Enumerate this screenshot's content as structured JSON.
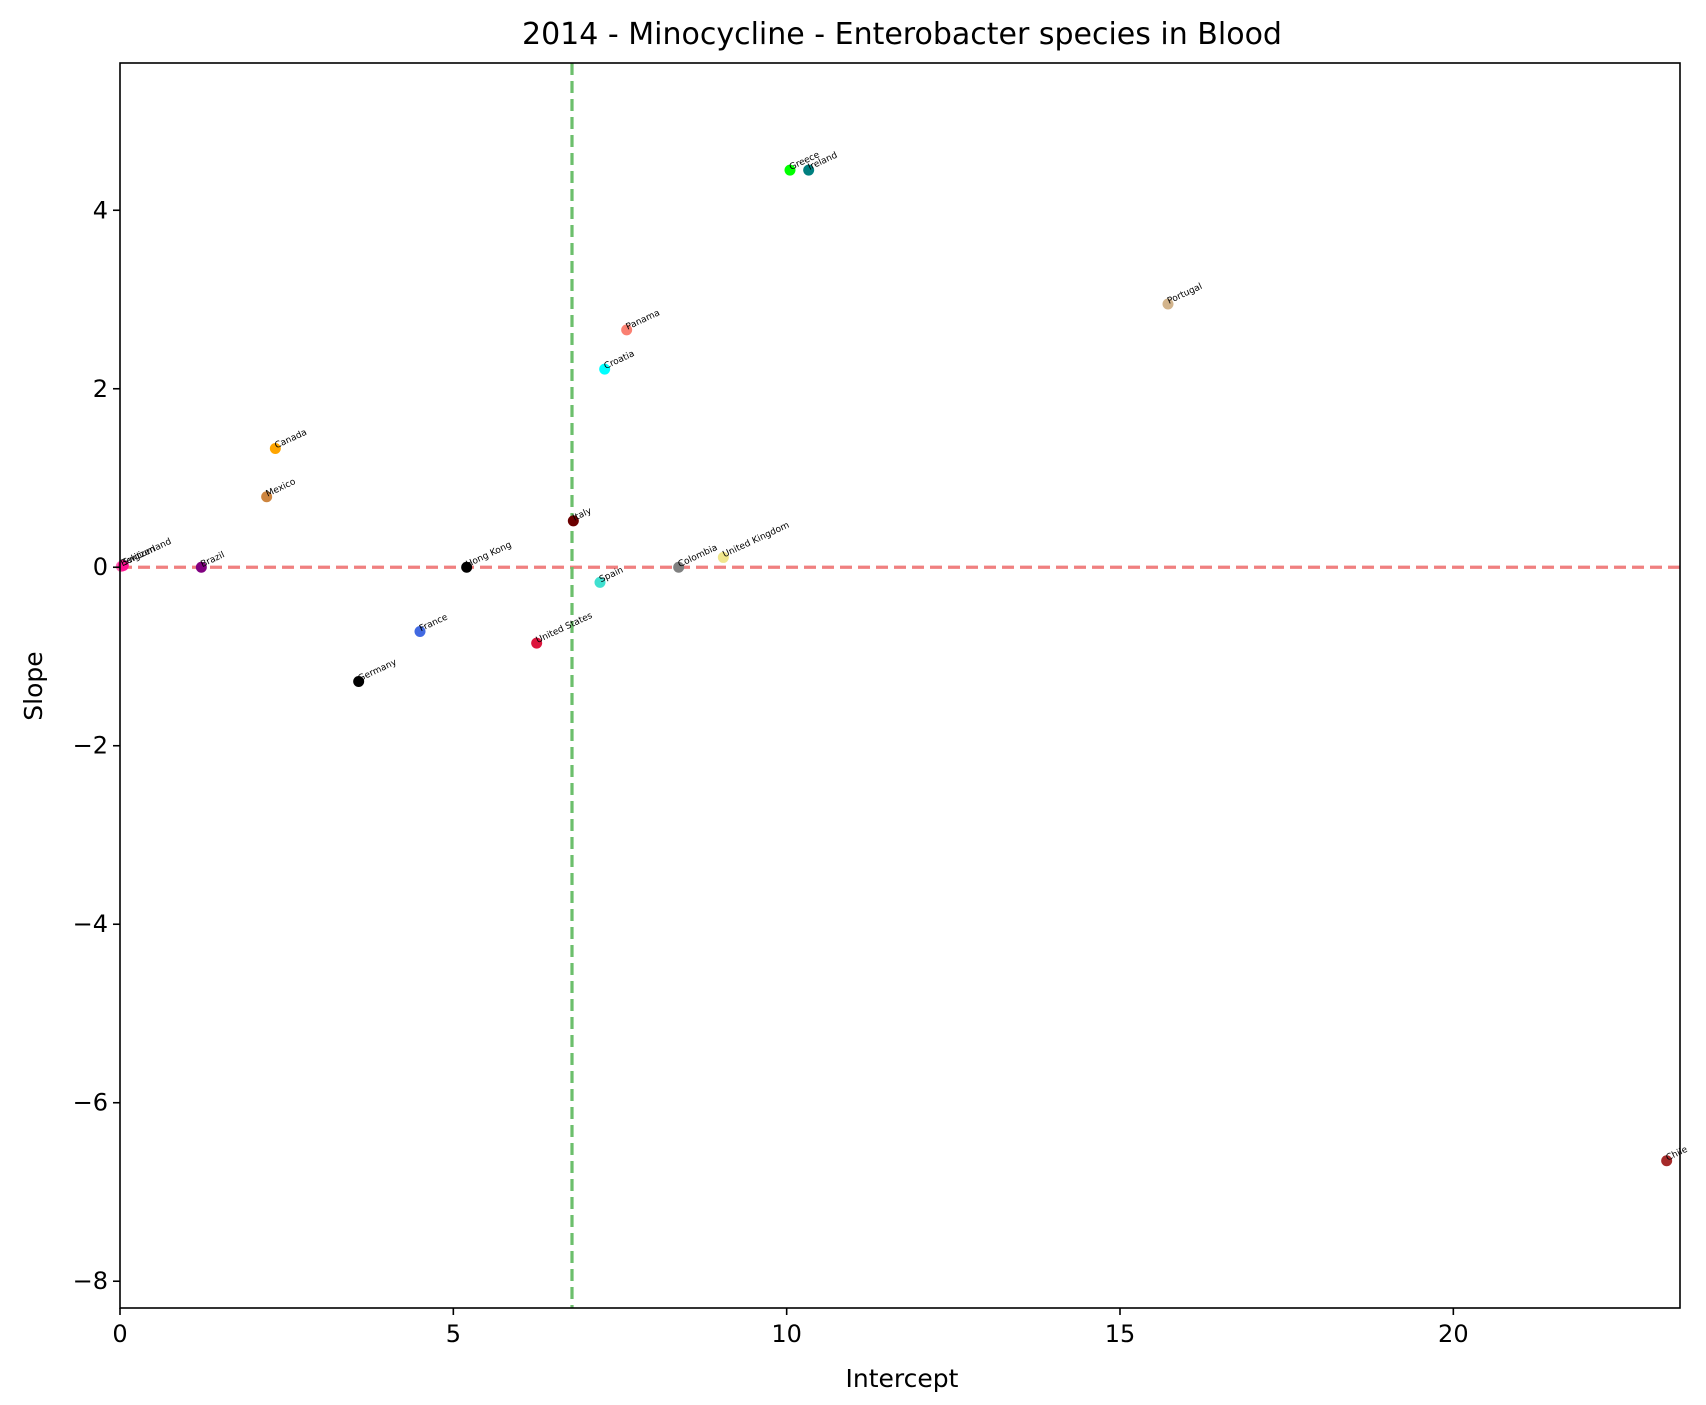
{
  "chart_data": {
    "type": "scatter",
    "title": "2014 - Minocycline - Enterobacter species in Blood",
    "xlabel": "Intercept",
    "ylabel": "Slope",
    "xlim": [
      0,
      23.4
    ],
    "ylim": [
      -8.3,
      5.65
    ],
    "xticks": [
      0,
      5,
      10,
      15,
      20
    ],
    "yticks": [
      4,
      2,
      0,
      -2,
      -4,
      -6,
      -8
    ],
    "xtick_labels": [
      "0",
      "5",
      "10",
      "15",
      "20"
    ],
    "ytick_labels": [
      "4",
      "2",
      "0",
      "−2",
      "−4",
      "−6",
      "−8"
    ],
    "reference_lines": [
      {
        "orientation": "horizontal",
        "value": 0,
        "color": "#f08080",
        "style": "dashed"
      },
      {
        "orientation": "vertical",
        "value": 6.78,
        "color": "#6cbf6c",
        "style": "dashed"
      }
    ],
    "grid": false,
    "points": [
      {
        "name": "Belgium",
        "x": 0.02,
        "y": 0.01,
        "color": "#ff69b4"
      },
      {
        "name": "Switzerland",
        "x": 0.05,
        "y": 0.02,
        "color": "#ff1493"
      },
      {
        "name": "Brazil",
        "x": 1.22,
        "y": 0.0,
        "color": "#800080"
      },
      {
        "name": "Mexico",
        "x": 2.2,
        "y": 0.79,
        "color": "#cd853f"
      },
      {
        "name": "Canada",
        "x": 2.33,
        "y": 1.33,
        "color": "#ffa500"
      },
      {
        "name": "Germany",
        "x": 3.58,
        "y": -1.28,
        "color": "#000000"
      },
      {
        "name": "France",
        "x": 4.5,
        "y": -0.72,
        "color": "#4169e1"
      },
      {
        "name": "Hong Kong",
        "x": 5.2,
        "y": 0.0,
        "color": "#000000"
      },
      {
        "name": "United States",
        "x": 6.25,
        "y": -0.85,
        "color": "#dc143c"
      },
      {
        "name": "Italy",
        "x": 6.8,
        "y": 0.52,
        "color": "#6b0000"
      },
      {
        "name": "Spain",
        "x": 7.2,
        "y": -0.17,
        "color": "#40e0d0"
      },
      {
        "name": "Croatia",
        "x": 7.27,
        "y": 2.22,
        "color": "#00ffff"
      },
      {
        "name": "Panama",
        "x": 7.6,
        "y": 2.66,
        "color": "#fa8072"
      },
      {
        "name": "Colombia",
        "x": 8.38,
        "y": 0.0,
        "color": "#808080"
      },
      {
        "name": "United Kingdom",
        "x": 9.05,
        "y": 0.11,
        "color": "#f0e68c"
      },
      {
        "name": "Greece",
        "x": 10.05,
        "y": 4.45,
        "color": "#00ff00"
      },
      {
        "name": "Ireland",
        "x": 10.33,
        "y": 4.45,
        "color": "#008080"
      },
      {
        "name": "Portugal",
        "x": 15.72,
        "y": 2.95,
        "color": "#d2b48c"
      },
      {
        "name": "Chile",
        "x": 23.2,
        "y": -6.65,
        "color": "#a52a2a"
      }
    ]
  }
}
